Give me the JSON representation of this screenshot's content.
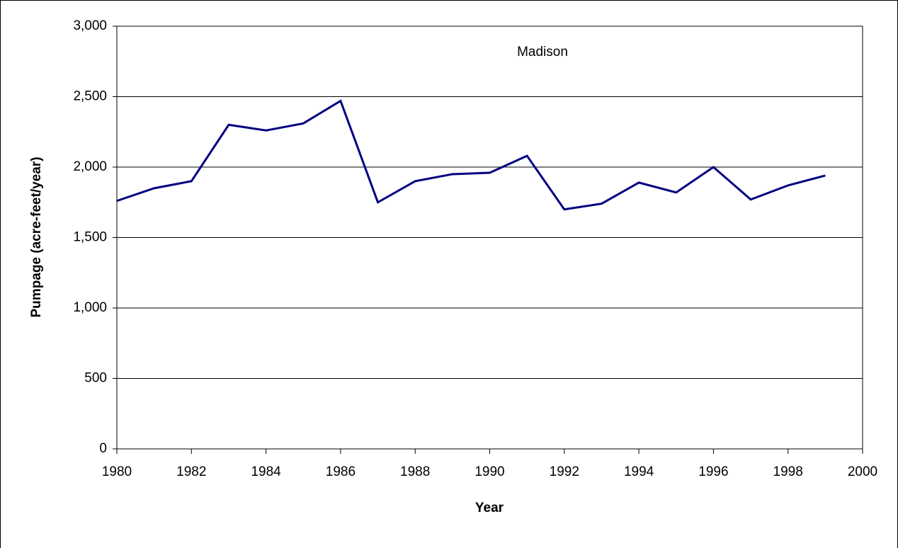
{
  "chart_data": {
    "type": "line",
    "annotation": "Madison",
    "xlabel": "Year",
    "ylabel": "Pumpage (acre-feet/year)",
    "x": [
      1980,
      1981,
      1982,
      1983,
      1984,
      1985,
      1986,
      1987,
      1988,
      1989,
      1990,
      1991,
      1992,
      1993,
      1994,
      1995,
      1996,
      1997,
      1998,
      1999
    ],
    "series": [
      {
        "color": "#000080",
        "values": [
          1760,
          1850,
          1900,
          2300,
          2260,
          2310,
          2470,
          1750,
          1900,
          1950,
          1960,
          2080,
          1700,
          1740,
          1890,
          1820,
          2000,
          1770,
          1870,
          1940
        ]
      }
    ],
    "xlim": [
      1980,
      2000
    ],
    "xticks": [
      1980,
      1982,
      1984,
      1986,
      1988,
      1990,
      1992,
      1994,
      1996,
      1998,
      2000
    ],
    "ylim": [
      0,
      3000
    ],
    "yticks": [
      0,
      500,
      {
        "value": 1000,
        "label": "1,000"
      },
      {
        "value": 1500,
        "label": "1,500"
      },
      {
        "value": 2000,
        "label": "2,000"
      },
      {
        "value": 2500,
        "label": "2,500"
      },
      {
        "value": 3000,
        "label": "3,000"
      }
    ],
    "grid": true
  }
}
